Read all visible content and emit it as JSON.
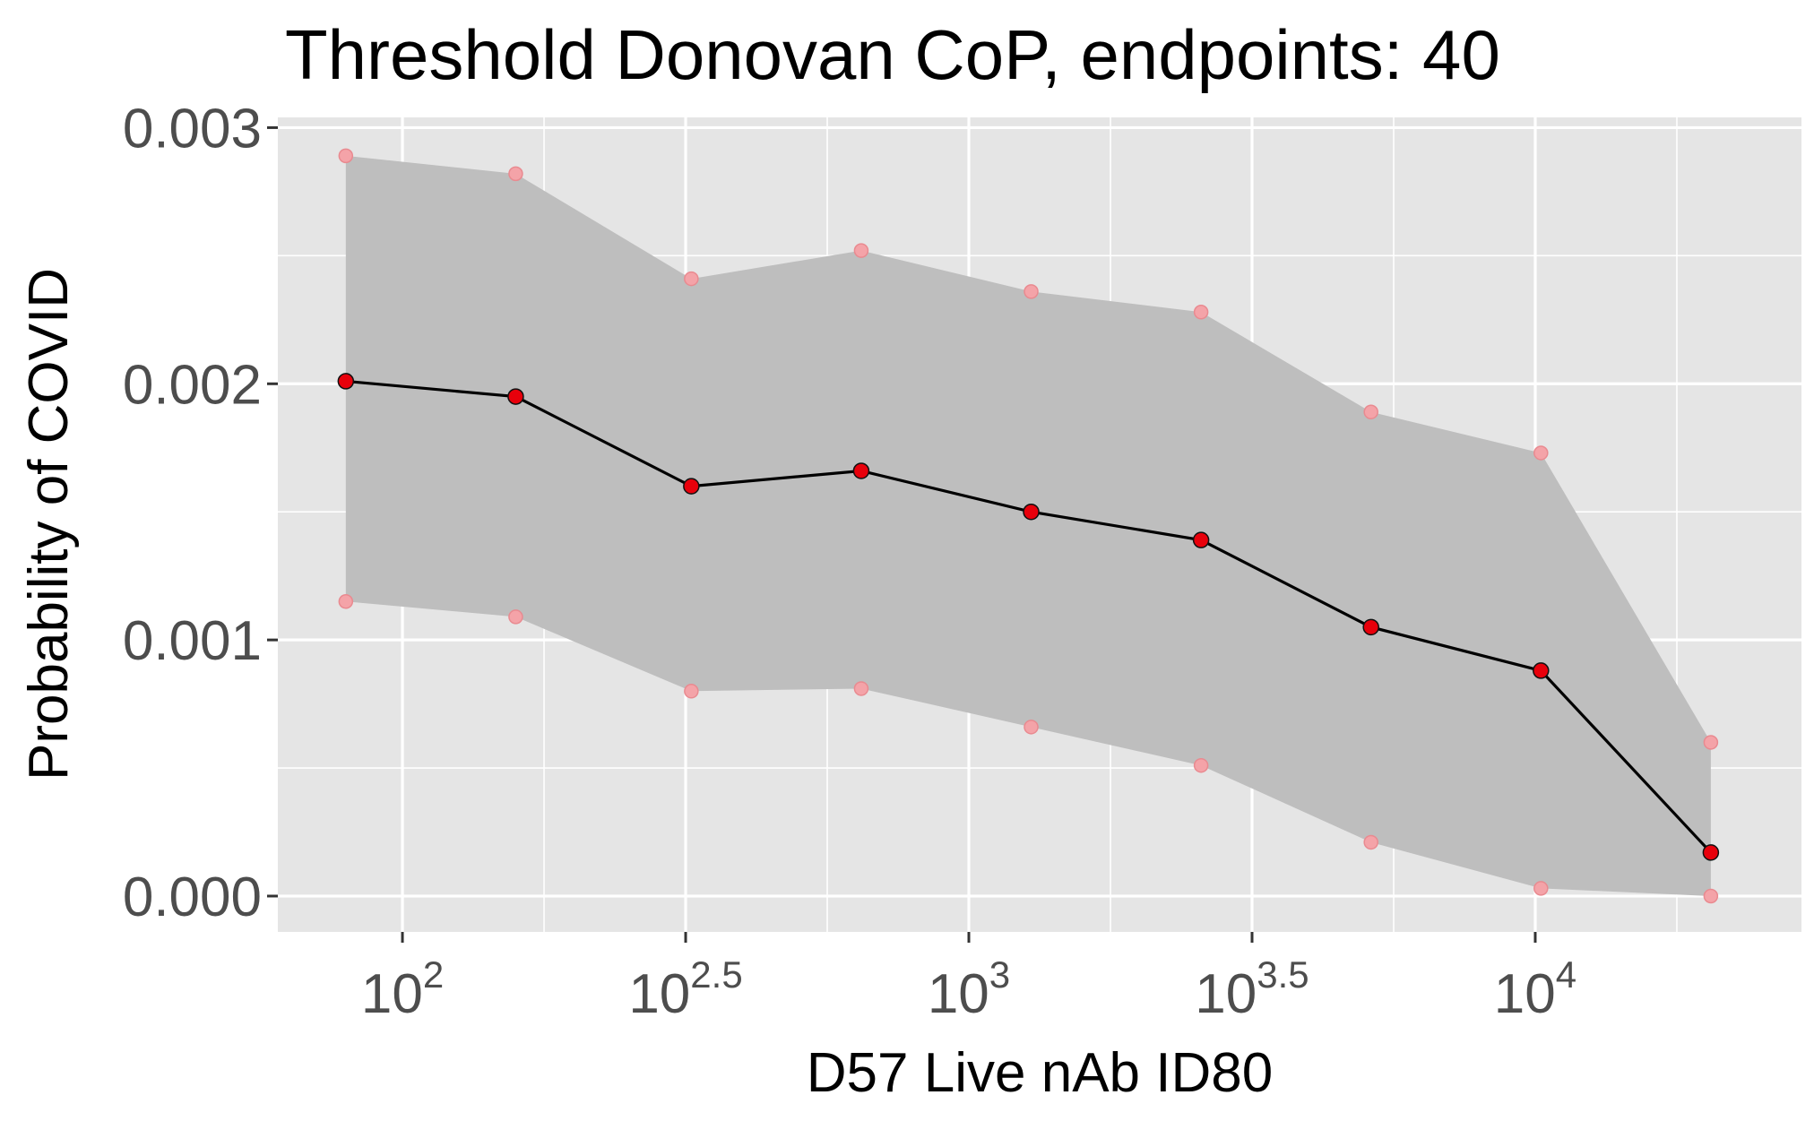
{
  "chart_data": {
    "type": "line",
    "title": "Threshold Donovan CoP, endpoints: 40",
    "xlabel": "D57 Live nAb ID80",
    "ylabel": "Probability of COVID",
    "x_scale": "log10",
    "xlim_log10": [
      1.78,
      4.47
    ],
    "ylim": [
      -0.00014,
      0.00304
    ],
    "x_ticks": [
      {
        "base": "10",
        "exp": "2",
        "value_log10": 2.0
      },
      {
        "base": "10",
        "exp": "2.5",
        "value_log10": 2.5
      },
      {
        "base": "10",
        "exp": "3",
        "value_log10": 3.0
      },
      {
        "base": "10",
        "exp": "3.5",
        "value_log10": 3.5
      },
      {
        "base": "10",
        "exp": "4",
        "value_log10": 4.0
      }
    ],
    "y_ticks": [
      {
        "label": "0.000",
        "value": 0.0
      },
      {
        "label": "0.001",
        "value": 0.001
      },
      {
        "label": "0.002",
        "value": 0.002
      },
      {
        "label": "0.003",
        "value": 0.003
      }
    ],
    "grid": true,
    "points": [
      {
        "x_log10": 1.9,
        "y": 0.00201,
        "lower": 0.00115,
        "upper": 0.00289
      },
      {
        "x_log10": 2.2,
        "y": 0.00195,
        "lower": 0.00109,
        "upper": 0.00282
      },
      {
        "x_log10": 2.51,
        "y": 0.0016,
        "lower": 0.0008,
        "upper": 0.00241
      },
      {
        "x_log10": 2.81,
        "y": 0.00166,
        "lower": 0.00081,
        "upper": 0.00252
      },
      {
        "x_log10": 3.11,
        "y": 0.0015,
        "lower": 0.00066,
        "upper": 0.00236
      },
      {
        "x_log10": 3.41,
        "y": 0.00139,
        "lower": 0.00051,
        "upper": 0.00228
      },
      {
        "x_log10": 3.71,
        "y": 0.00105,
        "lower": 0.00021,
        "upper": 0.00189
      },
      {
        "x_log10": 4.01,
        "y": 0.00088,
        "lower": 3e-05,
        "upper": 0.00173
      },
      {
        "x_log10": 4.31,
        "y": 0.00017,
        "lower": 0.0,
        "upper": 0.0006
      }
    ],
    "colors": {
      "panel": "#e5e5e5",
      "grid": "#ffffff",
      "band": "#bebebe",
      "line": "#000000",
      "point": "#e8000b",
      "ci_point": "#f4a3a8"
    }
  }
}
